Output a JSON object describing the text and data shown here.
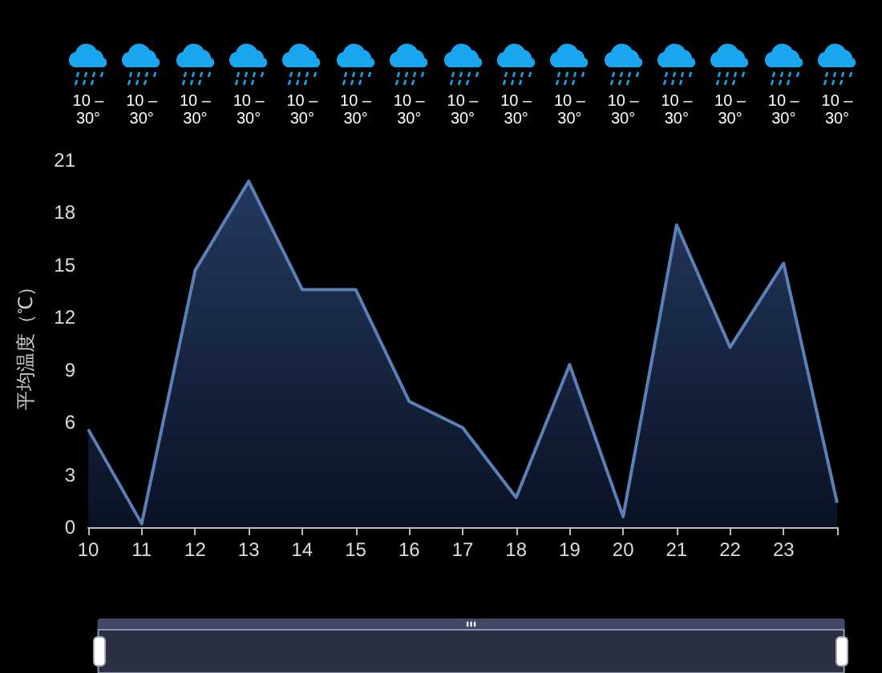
{
  "chart_data": {
    "type": "area",
    "ylabel": "平均温度（℃）",
    "categories": [
      "10",
      "11",
      "12",
      "13",
      "14",
      "15",
      "16",
      "17",
      "18",
      "19",
      "20",
      "21",
      "22",
      "23",
      null
    ],
    "series": [
      {
        "color": "#5b80b5",
        "values": [
          5.6,
          0.2,
          14.7,
          19.8,
          13.6,
          13.6,
          7.2,
          5.7,
          1.7,
          9.3,
          0.6,
          17.3,
          10.3,
          15.1,
          1.4
        ]
      }
    ],
    "ylim": [
      0,
      21
    ],
    "yticks": [
      0,
      3,
      6,
      9,
      12,
      15,
      18,
      21
    ],
    "grid": false,
    "marker": "none",
    "annotations": [
      "10 – 30°",
      "10 – 30°",
      "10 – 30°",
      "10 – 30°",
      "10 – 30°",
      "10 – 30°",
      "10 – 30°",
      "10 – 30°",
      "10 – 30°",
      "10 – 30°",
      "10 – 30°",
      "10 – 30°",
      "10 – 30°",
      "10 – 30°",
      "10 – 30°"
    ]
  }
}
